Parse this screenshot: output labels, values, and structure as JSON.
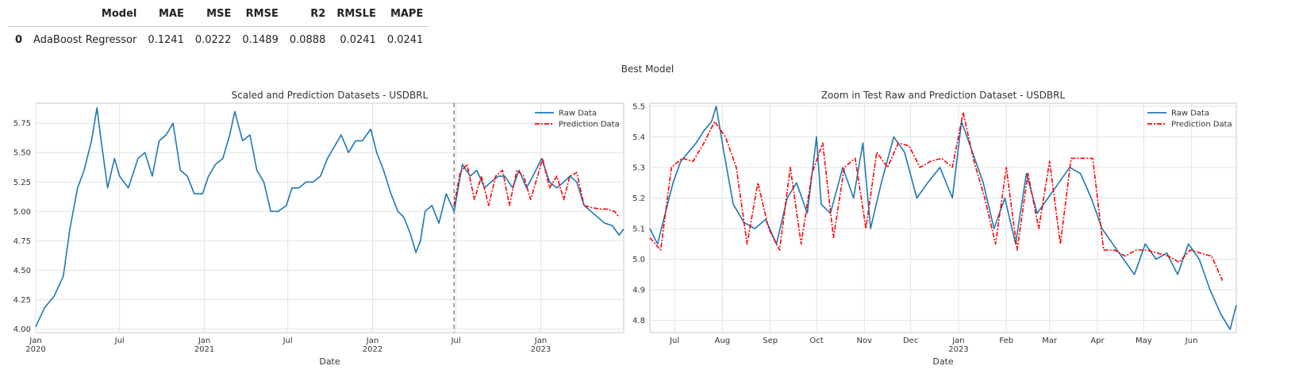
{
  "table": {
    "headers": [
      "",
      "Model",
      "MAE",
      "MSE",
      "RMSE",
      "R2",
      "RMSLE",
      "MAPE"
    ],
    "rows": [
      [
        "0",
        "AdaBoost Regressor",
        "0.1241",
        "0.0222",
        "0.1489",
        "0.0888",
        "0.0241",
        "0.0241"
      ]
    ]
  },
  "suptitle": "Best Model",
  "colors": {
    "raw": "#1f77b4",
    "prediction": "#ff0000",
    "split_line": "#808080"
  },
  "chart_data": [
    {
      "type": "line",
      "title": "Scaled and Prediction Datasets - USDBRL",
      "xlabel": "Date",
      "ylabel": "",
      "xlim": [
        "2020-01-01",
        "2023-06-30"
      ],
      "ylim": [
        3.97,
        5.92
      ],
      "x_ticks": [
        "2020-01-01",
        "2020-07-01",
        "2021-01-01",
        "2021-07-01",
        "2022-01-01",
        "2022-07-01",
        "2023-01-01"
      ],
      "x_tick_labels": [
        [
          "Jan",
          "2020"
        ],
        [
          "Jul"
        ],
        [
          "Jan",
          "2021"
        ],
        [
          "Jul"
        ],
        [
          "Jan",
          "2022"
        ],
        [
          "Jul"
        ],
        [
          "Jan",
          "2023"
        ]
      ],
      "y_ticks": [
        4.0,
        4.25,
        4.5,
        4.75,
        5.0,
        5.25,
        5.5,
        5.75
      ],
      "y_tick_labels": [
        "4.00",
        "4.25",
        "4.50",
        "4.75",
        "5.00",
        "5.25",
        "5.50",
        "5.75"
      ],
      "split_date": "2022-06-27",
      "grid": true,
      "legend": "top-right",
      "series": [
        {
          "name": "Raw Data",
          "style": "solid",
          "x": [
            "2020-01-01",
            "2020-01-20",
            "2020-02-10",
            "2020-03-01",
            "2020-03-15",
            "2020-04-01",
            "2020-04-15",
            "2020-05-01",
            "2020-05-13",
            "2020-05-22",
            "2020-06-05",
            "2020-06-20",
            "2020-07-01",
            "2020-07-20",
            "2020-08-10",
            "2020-08-25",
            "2020-09-10",
            "2020-09-25",
            "2020-10-10",
            "2020-10-25",
            "2020-11-10",
            "2020-11-25",
            "2020-12-10",
            "2020-12-28",
            "2021-01-10",
            "2021-01-25",
            "2021-02-10",
            "2021-02-25",
            "2021-03-08",
            "2021-03-25",
            "2021-04-10",
            "2021-04-25",
            "2021-05-10",
            "2021-05-25",
            "2021-06-10",
            "2021-06-28",
            "2021-07-10",
            "2021-07-25",
            "2021-08-10",
            "2021-08-25",
            "2021-09-10",
            "2021-09-25",
            "2021-10-10",
            "2021-10-25",
            "2021-11-10",
            "2021-11-25",
            "2021-12-10",
            "2021-12-28",
            "2022-01-10",
            "2022-01-25",
            "2022-02-10",
            "2022-02-25",
            "2022-03-10",
            "2022-03-25",
            "2022-04-05",
            "2022-04-15",
            "2022-04-25",
            "2022-05-10",
            "2022-05-25",
            "2022-06-10",
            "2022-06-27",
            "2022-07-15",
            "2022-08-01",
            "2022-08-15",
            "2022-09-01",
            "2022-09-15",
            "2022-10-01",
            "2022-10-15",
            "2022-11-01",
            "2022-11-15",
            "2022-12-01",
            "2022-12-15",
            "2023-01-03",
            "2023-01-20",
            "2023-02-05",
            "2023-02-20",
            "2023-03-05",
            "2023-03-20",
            "2023-04-05",
            "2023-04-20",
            "2023-05-05",
            "2023-05-20",
            "2023-06-05",
            "2023-06-20",
            "2023-06-30"
          ],
          "y": [
            4.02,
            4.18,
            4.28,
            4.45,
            4.85,
            5.2,
            5.35,
            5.6,
            5.88,
            5.6,
            5.2,
            5.45,
            5.3,
            5.2,
            5.45,
            5.5,
            5.3,
            5.6,
            5.65,
            5.75,
            5.35,
            5.3,
            5.15,
            5.15,
            5.3,
            5.4,
            5.45,
            5.65,
            5.85,
            5.6,
            5.65,
            5.35,
            5.25,
            5.0,
            5.0,
            5.05,
            5.2,
            5.2,
            5.25,
            5.25,
            5.3,
            5.45,
            5.55,
            5.65,
            5.5,
            5.6,
            5.6,
            5.7,
            5.5,
            5.35,
            5.15,
            5.0,
            4.95,
            4.8,
            4.65,
            4.75,
            5.0,
            5.05,
            4.9,
            5.15,
            5.0,
            5.4,
            5.3,
            5.35,
            5.2,
            5.25,
            5.3,
            5.3,
            5.2,
            5.35,
            5.2,
            5.3,
            5.45,
            5.25,
            5.2,
            5.25,
            5.3,
            5.25,
            5.05,
            5.0,
            4.95,
            4.9,
            4.88,
            4.8,
            4.85
          ]
        },
        {
          "name": "Prediction Data",
          "style": "dashdot",
          "x": [
            "2022-06-27",
            "2022-07-10",
            "2022-07-25",
            "2022-08-10",
            "2022-08-25",
            "2022-09-10",
            "2022-09-25",
            "2022-10-10",
            "2022-10-25",
            "2022-11-10",
            "2022-11-25",
            "2022-12-10",
            "2022-12-25",
            "2023-01-05",
            "2023-01-20",
            "2023-02-05",
            "2023-02-20",
            "2023-03-05",
            "2023-03-20",
            "2023-04-05",
            "2023-04-25",
            "2023-05-10",
            "2023-05-25",
            "2023-06-10",
            "2023-06-20"
          ],
          "y": [
            5.05,
            5.33,
            5.4,
            5.1,
            5.3,
            5.05,
            5.3,
            5.35,
            5.05,
            5.35,
            5.3,
            5.1,
            5.3,
            5.45,
            5.2,
            5.3,
            5.1,
            5.3,
            5.33,
            5.05,
            5.03,
            5.02,
            5.02,
            5.0,
            4.95
          ]
        }
      ]
    },
    {
      "type": "line",
      "title": "Zoom in Test Raw and Prediction Dataset - USDBRL",
      "xlabel": "Date",
      "ylabel": "",
      "xlim": [
        "2022-06-15",
        "2023-06-30"
      ],
      "ylim": [
        4.76,
        5.51
      ],
      "x_ticks": [
        "2022-07-01",
        "2022-08-01",
        "2022-09-01",
        "2022-10-01",
        "2022-11-01",
        "2022-12-01",
        "2023-01-01",
        "2023-02-01",
        "2023-03-01",
        "2023-04-01",
        "2023-05-01",
        "2023-06-01"
      ],
      "x_tick_labels": [
        [
          "Jul"
        ],
        [
          "Aug"
        ],
        [
          "Sep"
        ],
        [
          "Oct"
        ],
        [
          "Nov"
        ],
        [
          "Dec"
        ],
        [
          "Jan",
          "2023"
        ],
        [
          "Feb"
        ],
        [
          "Mar"
        ],
        [
          "Apr"
        ],
        [
          "May"
        ],
        [
          "Jun"
        ]
      ],
      "y_ticks": [
        4.8,
        4.9,
        5.0,
        5.1,
        5.2,
        5.3,
        5.4,
        5.5
      ],
      "y_tick_labels": [
        "4.8",
        "4.9",
        "5.0",
        "5.1",
        "5.2",
        "5.3",
        "5.4",
        "5.5"
      ],
      "grid": true,
      "legend": "top-right",
      "series": [
        {
          "name": "Raw Data",
          "style": "solid",
          "x": [
            "2022-06-15",
            "2022-06-20",
            "2022-06-25",
            "2022-06-30",
            "2022-07-05",
            "2022-07-10",
            "2022-07-15",
            "2022-07-20",
            "2022-07-25",
            "2022-07-28",
            "2022-08-02",
            "2022-08-08",
            "2022-08-15",
            "2022-08-22",
            "2022-08-29",
            "2022-09-05",
            "2022-09-12",
            "2022-09-18",
            "2022-09-25",
            "2022-10-01",
            "2022-10-04",
            "2022-10-10",
            "2022-10-18",
            "2022-10-25",
            "2022-10-31",
            "2022-11-05",
            "2022-11-12",
            "2022-11-20",
            "2022-11-27",
            "2022-12-05",
            "2022-12-12",
            "2022-12-20",
            "2022-12-28",
            "2023-01-03",
            "2023-01-10",
            "2023-01-17",
            "2023-01-24",
            "2023-01-31",
            "2023-02-07",
            "2023-02-14",
            "2023-02-21",
            "2023-02-28",
            "2023-03-07",
            "2023-03-14",
            "2023-03-21",
            "2023-03-28",
            "2023-04-04",
            "2023-04-11",
            "2023-04-18",
            "2023-04-25",
            "2023-05-02",
            "2023-05-09",
            "2023-05-16",
            "2023-05-23",
            "2023-05-30",
            "2023-06-06",
            "2023-06-13",
            "2023-06-20",
            "2023-06-26",
            "2023-06-30"
          ],
          "y": [
            5.1,
            5.05,
            5.15,
            5.25,
            5.32,
            5.35,
            5.38,
            5.42,
            5.45,
            5.5,
            5.35,
            5.18,
            5.12,
            5.1,
            5.13,
            5.05,
            5.2,
            5.25,
            5.15,
            5.4,
            5.18,
            5.15,
            5.3,
            5.2,
            5.38,
            5.1,
            5.25,
            5.4,
            5.35,
            5.2,
            5.25,
            5.3,
            5.2,
            5.45,
            5.35,
            5.25,
            5.1,
            5.2,
            5.05,
            5.28,
            5.15,
            5.2,
            5.25,
            5.3,
            5.28,
            5.2,
            5.1,
            5.05,
            5.0,
            4.95,
            5.05,
            5.0,
            5.02,
            4.95,
            5.05,
            5.0,
            4.9,
            4.82,
            4.77,
            4.85
          ]
        },
        {
          "name": "Prediction Data",
          "style": "dashdot",
          "x": [
            "2022-06-15",
            "2022-06-22",
            "2022-06-29",
            "2022-07-06",
            "2022-07-13",
            "2022-07-20",
            "2022-07-27",
            "2022-08-03",
            "2022-08-10",
            "2022-08-17",
            "2022-08-24",
            "2022-08-31",
            "2022-09-07",
            "2022-09-14",
            "2022-09-21",
            "2022-09-28",
            "2022-10-05",
            "2022-10-12",
            "2022-10-19",
            "2022-10-26",
            "2022-11-02",
            "2022-11-09",
            "2022-11-16",
            "2022-11-23",
            "2022-11-30",
            "2022-12-07",
            "2022-12-14",
            "2022-12-21",
            "2022-12-28",
            "2023-01-04",
            "2023-01-11",
            "2023-01-18",
            "2023-01-25",
            "2023-02-01",
            "2023-02-08",
            "2023-02-15",
            "2023-02-22",
            "2023-03-01",
            "2023-03-08",
            "2023-03-15",
            "2023-03-22",
            "2023-03-29",
            "2023-04-05",
            "2023-04-12",
            "2023-04-19",
            "2023-04-26",
            "2023-05-03",
            "2023-05-10",
            "2023-05-17",
            "2023-05-24",
            "2023-05-31",
            "2023-06-07",
            "2023-06-14",
            "2023-06-21"
          ],
          "y": [
            5.07,
            5.03,
            5.3,
            5.33,
            5.32,
            5.38,
            5.45,
            5.4,
            5.3,
            5.05,
            5.25,
            5.1,
            5.03,
            5.3,
            5.05,
            5.28,
            5.38,
            5.07,
            5.3,
            5.33,
            5.1,
            5.35,
            5.3,
            5.38,
            5.37,
            5.3,
            5.32,
            5.33,
            5.3,
            5.48,
            5.32,
            5.2,
            5.05,
            5.3,
            5.03,
            5.28,
            5.1,
            5.32,
            5.05,
            5.33,
            5.33,
            5.33,
            5.03,
            5.03,
            5.01,
            5.03,
            5.03,
            5.02,
            5.01,
            4.99,
            5.03,
            5.02,
            5.01,
            4.93
          ]
        }
      ]
    }
  ]
}
